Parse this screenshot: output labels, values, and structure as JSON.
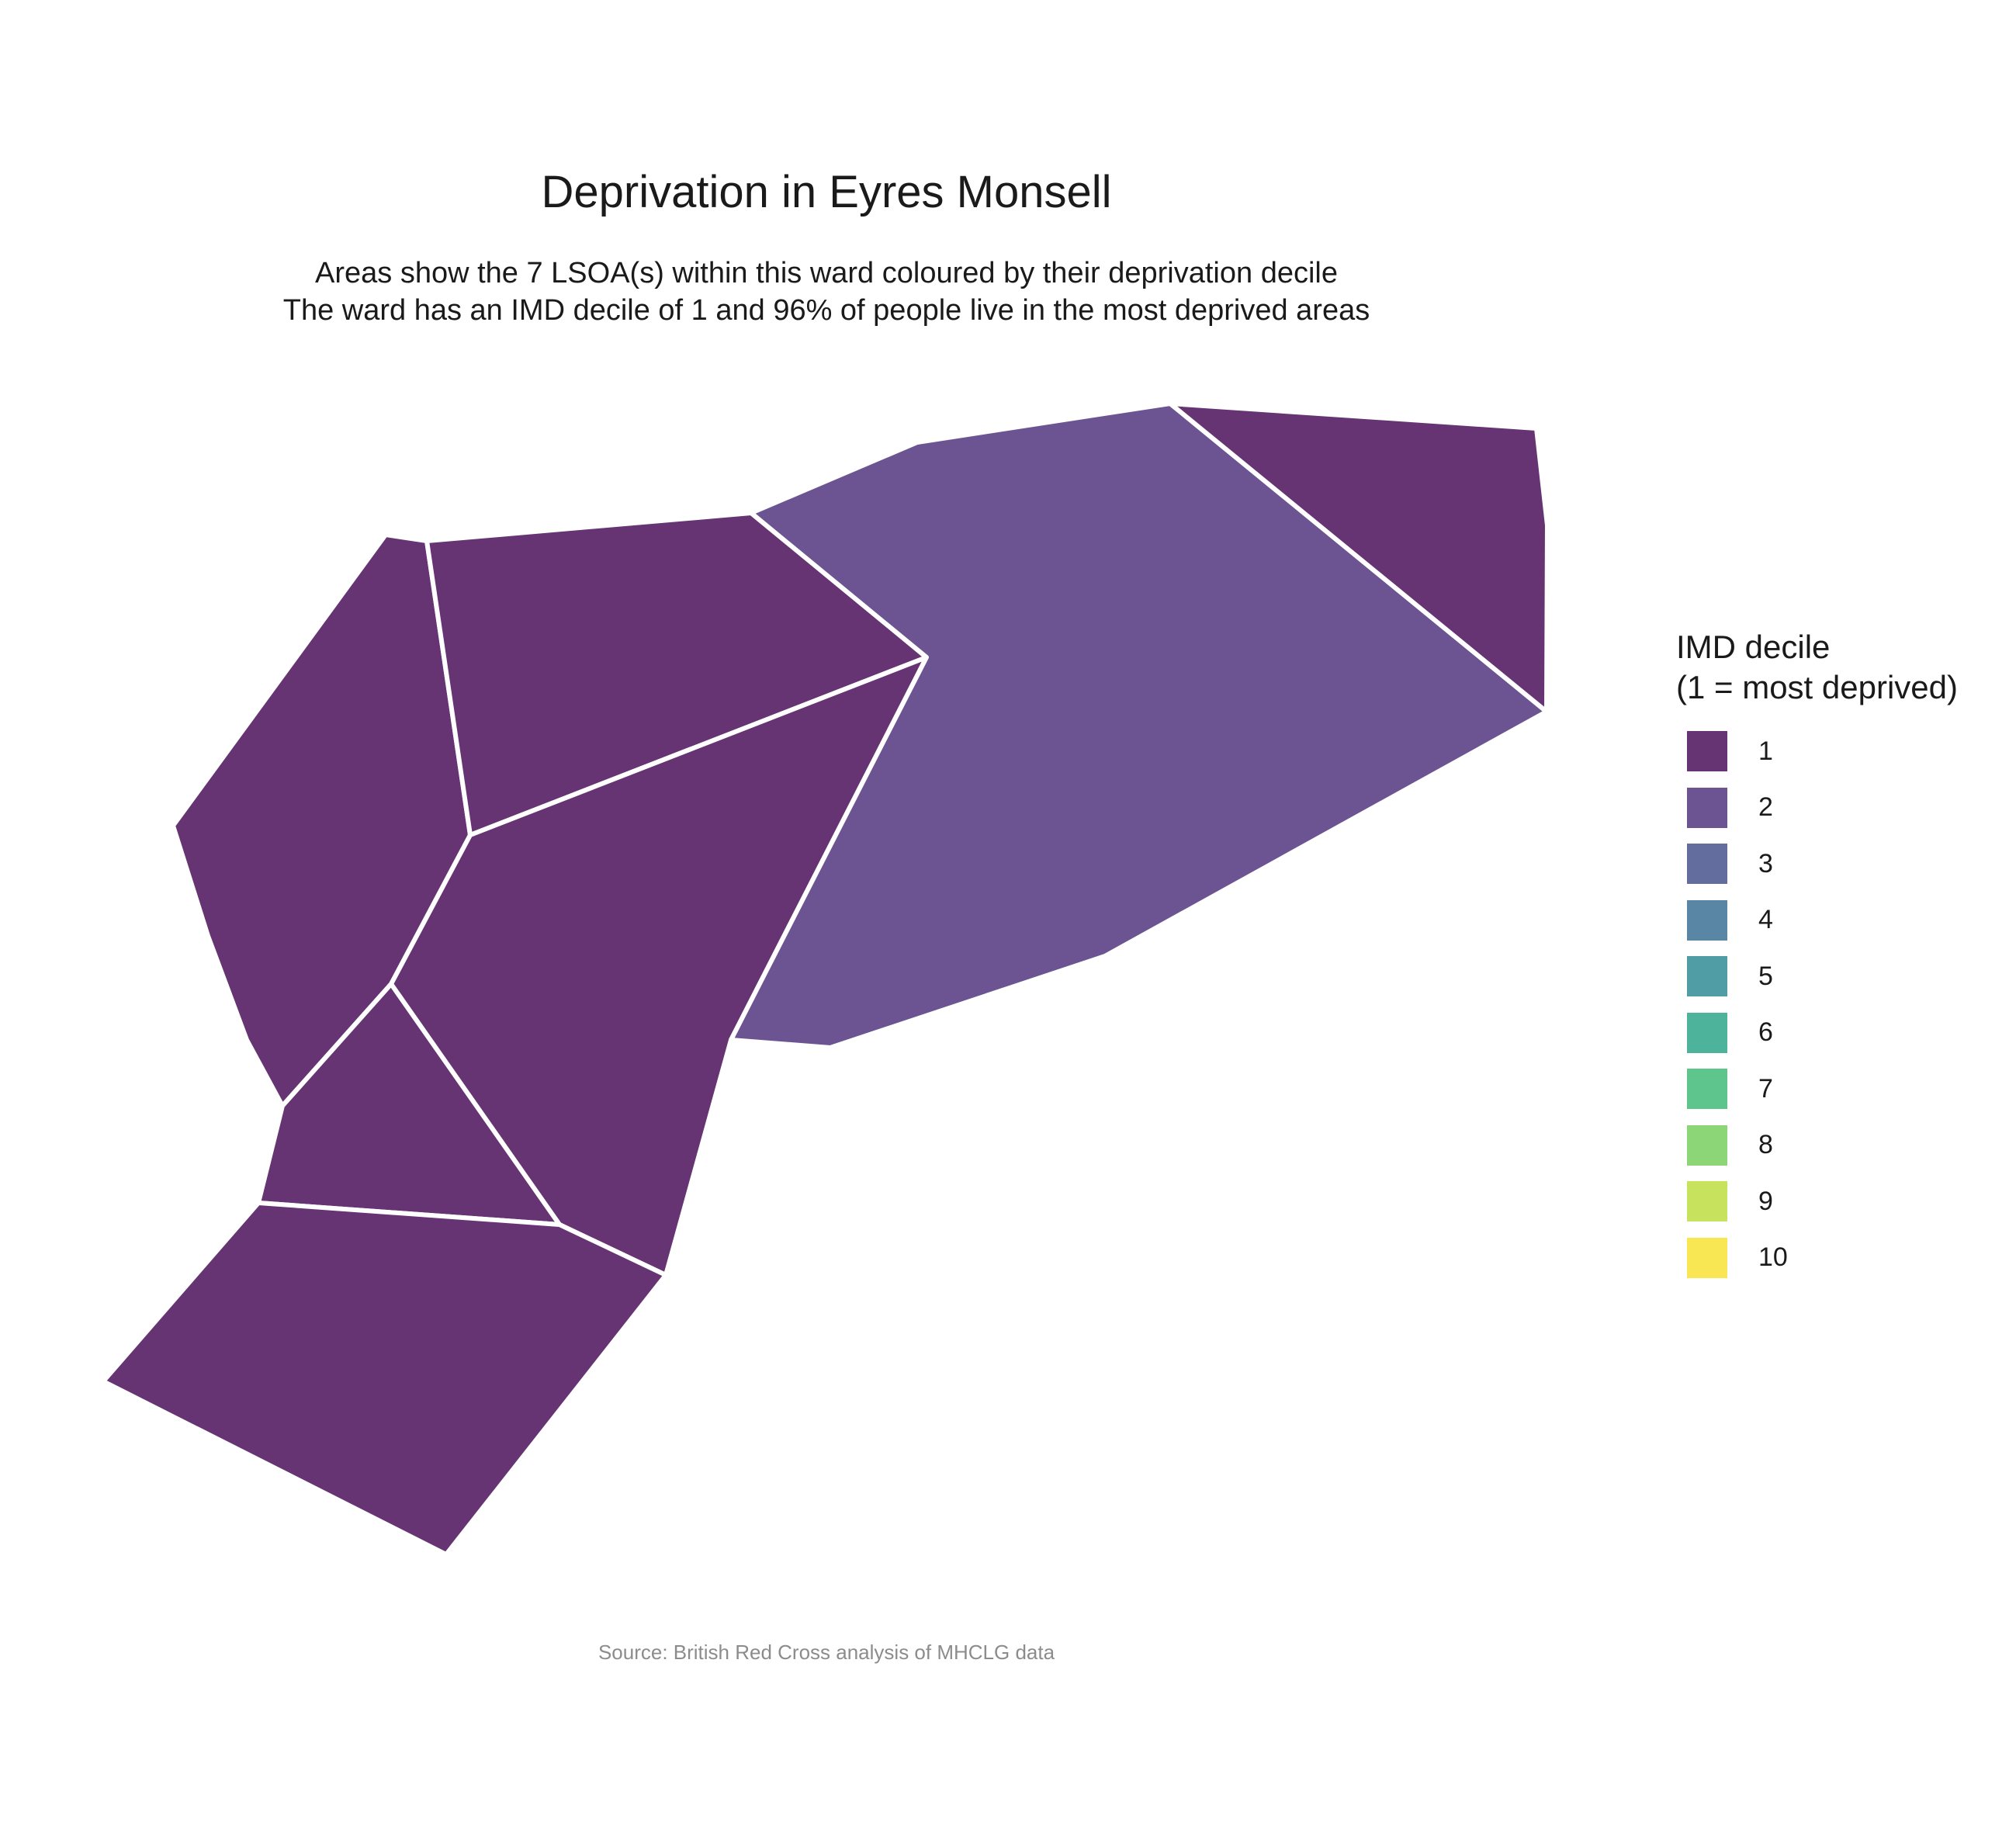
{
  "title": "Deprivation in Eyres Monsell",
  "subtitle_lines": [
    "Areas show the 7 LSOA(s) within this ward coloured by their deprivation decile",
    "The ward has an IMD decile of 1 and 96% of people live in the most deprived areas"
  ],
  "caption": "Source: British Red Cross analysis of MHCLG data",
  "legend": {
    "title_lines": [
      "IMD decile",
      "(1 = most deprived)"
    ],
    "items": [
      {
        "label": "1",
        "color": "#673473"
      },
      {
        "label": "2",
        "color": "#6b5491"
      },
      {
        "label": "3",
        "color": "#636e9f"
      },
      {
        "label": "4",
        "color": "#5a86a5"
      },
      {
        "label": "5",
        "color": "#519da5"
      },
      {
        "label": "6",
        "color": "#4db49b"
      },
      {
        "label": "7",
        "color": "#5ec68d"
      },
      {
        "label": "8",
        "color": "#8cd678"
      },
      {
        "label": "9",
        "color": "#c7e25d"
      },
      {
        "label": "10",
        "color": "#f8e753"
      }
    ]
  },
  "areas": [
    {
      "decile": 1
    },
    {
      "decile": 1
    },
    {
      "decile": 1
    },
    {
      "decile": 1
    },
    {
      "decile": 1
    },
    {
      "decile": 2
    },
    {
      "decile": 1
    }
  ],
  "border_color": "#ffffff"
}
